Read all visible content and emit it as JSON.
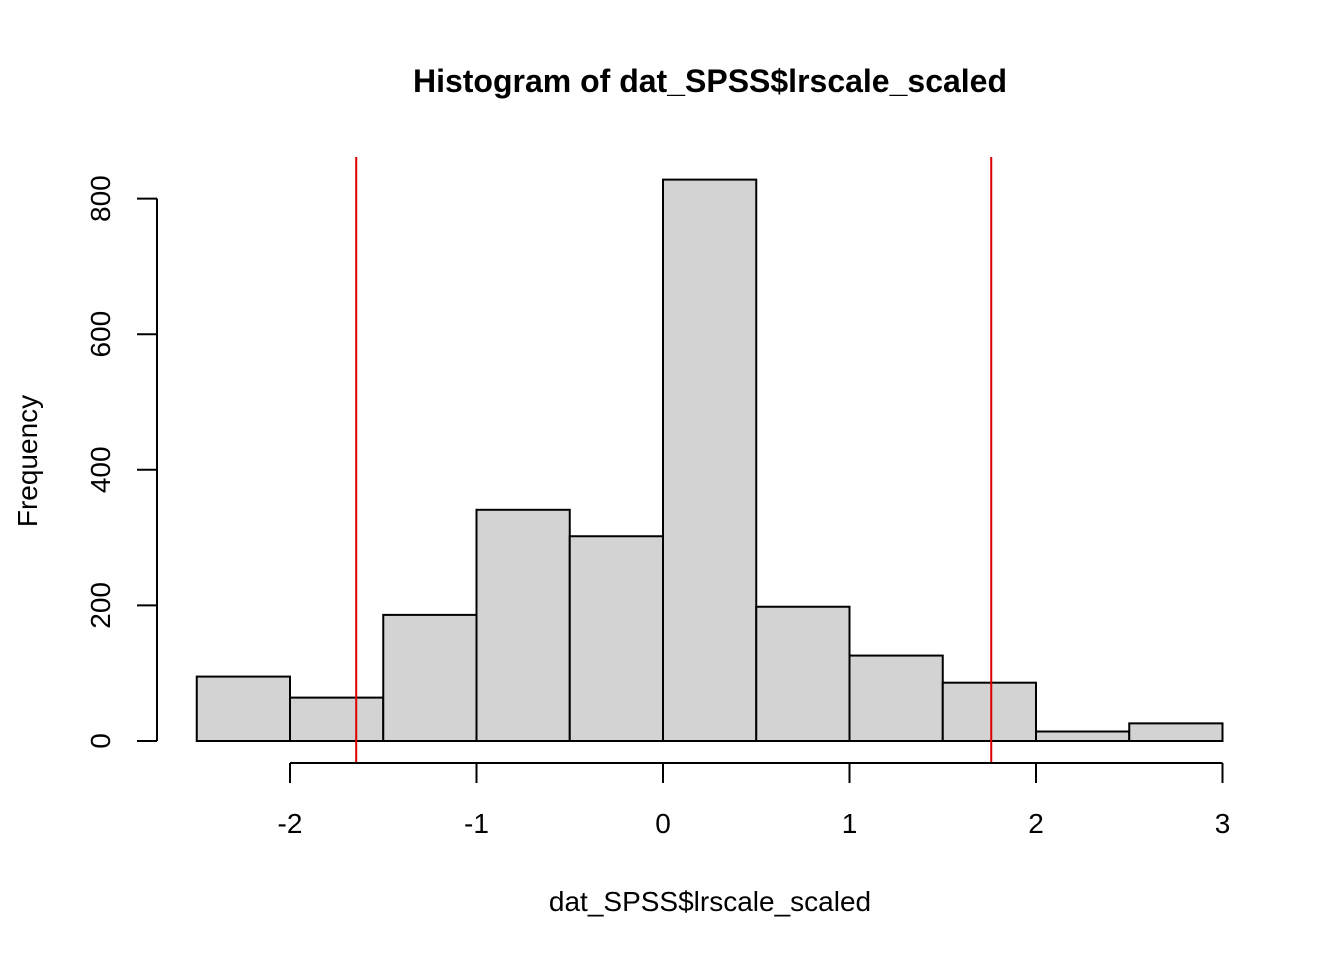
{
  "chart_data": {
    "type": "bar",
    "title": "Histogram of dat_SPSS$lrscale_scaled",
    "xlabel": "dat_SPSS$lrscale_scaled",
    "ylabel": "Frequency",
    "bins": [
      {
        "start": -2.5,
        "end": -2.0,
        "count": 95
      },
      {
        "start": -2.0,
        "end": -1.5,
        "count": 64
      },
      {
        "start": -1.5,
        "end": -1.0,
        "count": 186
      },
      {
        "start": -1.0,
        "end": -0.5,
        "count": 341
      },
      {
        "start": -0.5,
        "end": 0.0,
        "count": 302
      },
      {
        "start": 0.0,
        "end": 0.5,
        "count": 828
      },
      {
        "start": 0.5,
        "end": 1.0,
        "count": 198
      },
      {
        "start": 1.0,
        "end": 1.5,
        "count": 126
      },
      {
        "start": 1.5,
        "end": 2.0,
        "count": 86
      },
      {
        "start": 2.0,
        "end": 2.5,
        "count": 14
      },
      {
        "start": 2.5,
        "end": 3.0,
        "count": 26
      }
    ],
    "x_ticks": [
      -2,
      -1,
      0,
      1,
      2,
      3
    ],
    "x_tick_labels": [
      "-2",
      "-1",
      "0",
      "1",
      "2",
      "3"
    ],
    "y_ticks": [
      0,
      200,
      400,
      600,
      800
    ],
    "y_tick_labels": [
      "0",
      "200",
      "400",
      "600",
      "800"
    ],
    "reference_lines": [
      {
        "x": -1.645,
        "color": "#dd0000"
      },
      {
        "x": 1.76,
        "color": "#dd0000"
      }
    ],
    "bar_color": "#d3d3d3",
    "grid": false
  }
}
